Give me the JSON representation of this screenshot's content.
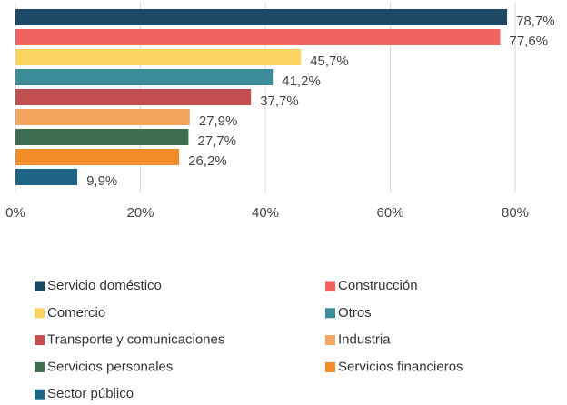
{
  "chart_data": {
    "type": "bar",
    "orientation": "horizontal",
    "categories": [
      "Servicio doméstico",
      "Construcción",
      "Comercio",
      "Otros",
      "Transporte y comunicaciones",
      "Industria",
      "Servicios personales",
      "Servicios financieros",
      "Sector público"
    ],
    "values": [
      78.7,
      77.6,
      45.7,
      41.2,
      37.7,
      27.9,
      27.7,
      26.2,
      9.9
    ],
    "value_labels": [
      "78,7%",
      "77,6%",
      "45,7%",
      "41,2%",
      "37,7%",
      "27,9%",
      "27,7%",
      "26,2%",
      "9,9%"
    ],
    "colors": [
      "#1d4966",
      "#ef6461",
      "#fcd462",
      "#3d8c99",
      "#c24f4f",
      "#f2a65e",
      "#3d6e4f",
      "#f28c28",
      "#1e6485"
    ],
    "xlim": [
      0,
      80
    ],
    "xticks": [
      {
        "value": 0,
        "label": "0%"
      },
      {
        "value": 20,
        "label": "20%"
      },
      {
        "value": 40,
        "label": "40%"
      },
      {
        "value": 60,
        "label": "60%"
      },
      {
        "value": 80,
        "label": "80%"
      }
    ],
    "grid": true
  }
}
